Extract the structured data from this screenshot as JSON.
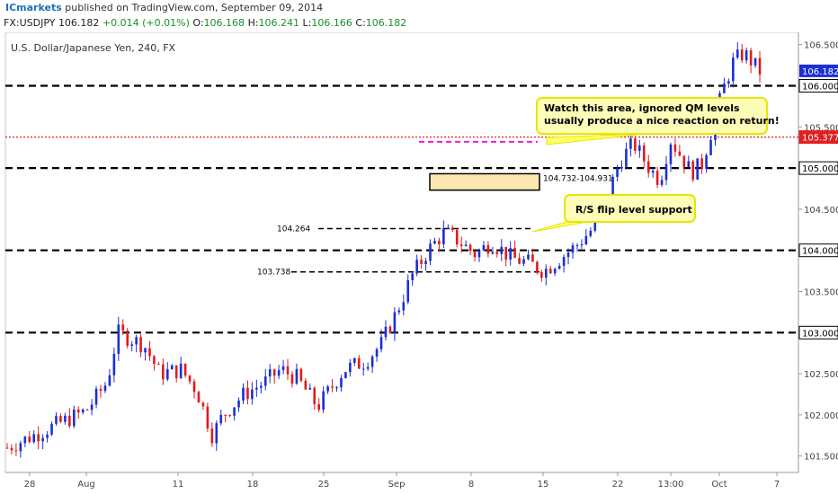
{
  "header": {
    "brand": "ICmarkets",
    "published": "published on TradingView.com, September 09, 2014",
    "symbol": "FX:USDJPY",
    "last": "106.182",
    "change": "+0.014 (+0.01%)",
    "o_label": "O:",
    "o": "106.168",
    "h_label": "H:",
    "h": "106.241",
    "l_label": "L:",
    "l": "106.166",
    "c_label": "C:",
    "c": "106.182"
  },
  "chart_data": {
    "type": "candlestick",
    "title": "U.S. Dollar/Japanese Yen, 240, FX",
    "ylim": [
      101.3,
      106.65
    ],
    "yticks": [
      "106.500",
      "106.000",
      "105.500",
      "105.000",
      "104.500",
      "104.000",
      "103.500",
      "103.000",
      "102.500",
      "102.000",
      "101.500"
    ],
    "xticks": [
      "28",
      "Aug",
      "11",
      "18",
      "25",
      "Sep",
      "8",
      "15",
      "22",
      "13:00",
      "Oct",
      "7"
    ],
    "bars": 170,
    "price_path": [
      [
        0,
        101.6
      ],
      [
        10,
        101.75
      ],
      [
        20,
        101.9
      ],
      [
        30,
        102.05
      ],
      [
        38,
        102.4
      ],
      [
        42,
        103.0
      ],
      [
        52,
        102.85
      ],
      [
        58,
        102.5
      ],
      [
        66,
        102.55
      ],
      [
        72,
        102.3
      ],
      [
        78,
        101.75
      ],
      [
        82,
        102.0
      ],
      [
        90,
        102.25
      ],
      [
        98,
        102.4
      ],
      [
        104,
        102.55
      ],
      [
        110,
        102.45
      ],
      [
        118,
        102.1
      ],
      [
        128,
        102.55
      ],
      [
        136,
        102.65
      ],
      [
        142,
        102.85
      ],
      [
        148,
        103.25
      ],
      [
        154,
        103.7
      ],
      [
        160,
        104.0
      ],
      [
        166,
        104.22
      ],
      [
        170,
        104.15
      ],
      [
        178,
        103.95
      ],
      [
        184,
        104.1
      ],
      [
        192,
        103.9
      ],
      [
        198,
        103.85
      ],
      [
        204,
        103.75
      ],
      [
        210,
        103.9
      ],
      [
        216,
        104.05
      ],
      [
        222,
        104.25
      ],
      [
        228,
        104.65
      ],
      [
        233,
        105.1
      ],
      [
        238,
        105.3
      ],
      [
        244,
        105.0
      ],
      [
        248,
        104.85
      ],
      [
        252,
        105.35
      ],
      [
        256,
        105.15
      ],
      [
        260,
        104.95
      ],
      [
        264,
        105.05
      ],
      [
        268,
        105.5
      ],
      [
        272,
        105.95
      ],
      [
        276,
        106.3
      ],
      [
        280,
        106.4
      ],
      [
        284,
        106.25
      ],
      [
        286,
        106.18
      ]
    ],
    "last_price": "106.182",
    "levels": [
      {
        "price": 106.0,
        "label": "106.000",
        "style": "dashed",
        "color": "#000000"
      },
      {
        "price": 105.377,
        "label": "105.377",
        "style": "dotted",
        "color": "#e02020"
      },
      {
        "price": 105.0,
        "label": "105.000",
        "style": "dashed",
        "color": "#000000"
      },
      {
        "price": 104.0,
        "label": "104.000",
        "style": "dashed",
        "color": "#000000"
      },
      {
        "price": 103.0,
        "label": "103.000",
        "style": "dashed",
        "color": "#000000"
      }
    ],
    "short_levels": [
      {
        "price": 104.264,
        "label": "104.264"
      },
      {
        "price": 103.738,
        "label": "103.738"
      }
    ],
    "qm_level": 105.32,
    "zone": {
      "low": 104.732,
      "high": 104.931,
      "label": "104.732-104.931"
    },
    "annotations": [
      {
        "text_lines": [
          "Watch this area, ignored QM levels",
          "usually produce a nice reaction on return!"
        ]
      },
      {
        "text_lines": [
          "R/S flip level support"
        ]
      }
    ],
    "colors": {
      "up": "#1a2fd6",
      "down": "#e01b1b",
      "price_tag": "#1a2fd6",
      "red_tag": "#e02020",
      "callout_fill": "#fdfdb8",
      "callout_border": "#e6e600",
      "zone_fill": "#fde8b0",
      "qm_line": "#e020e0"
    }
  }
}
